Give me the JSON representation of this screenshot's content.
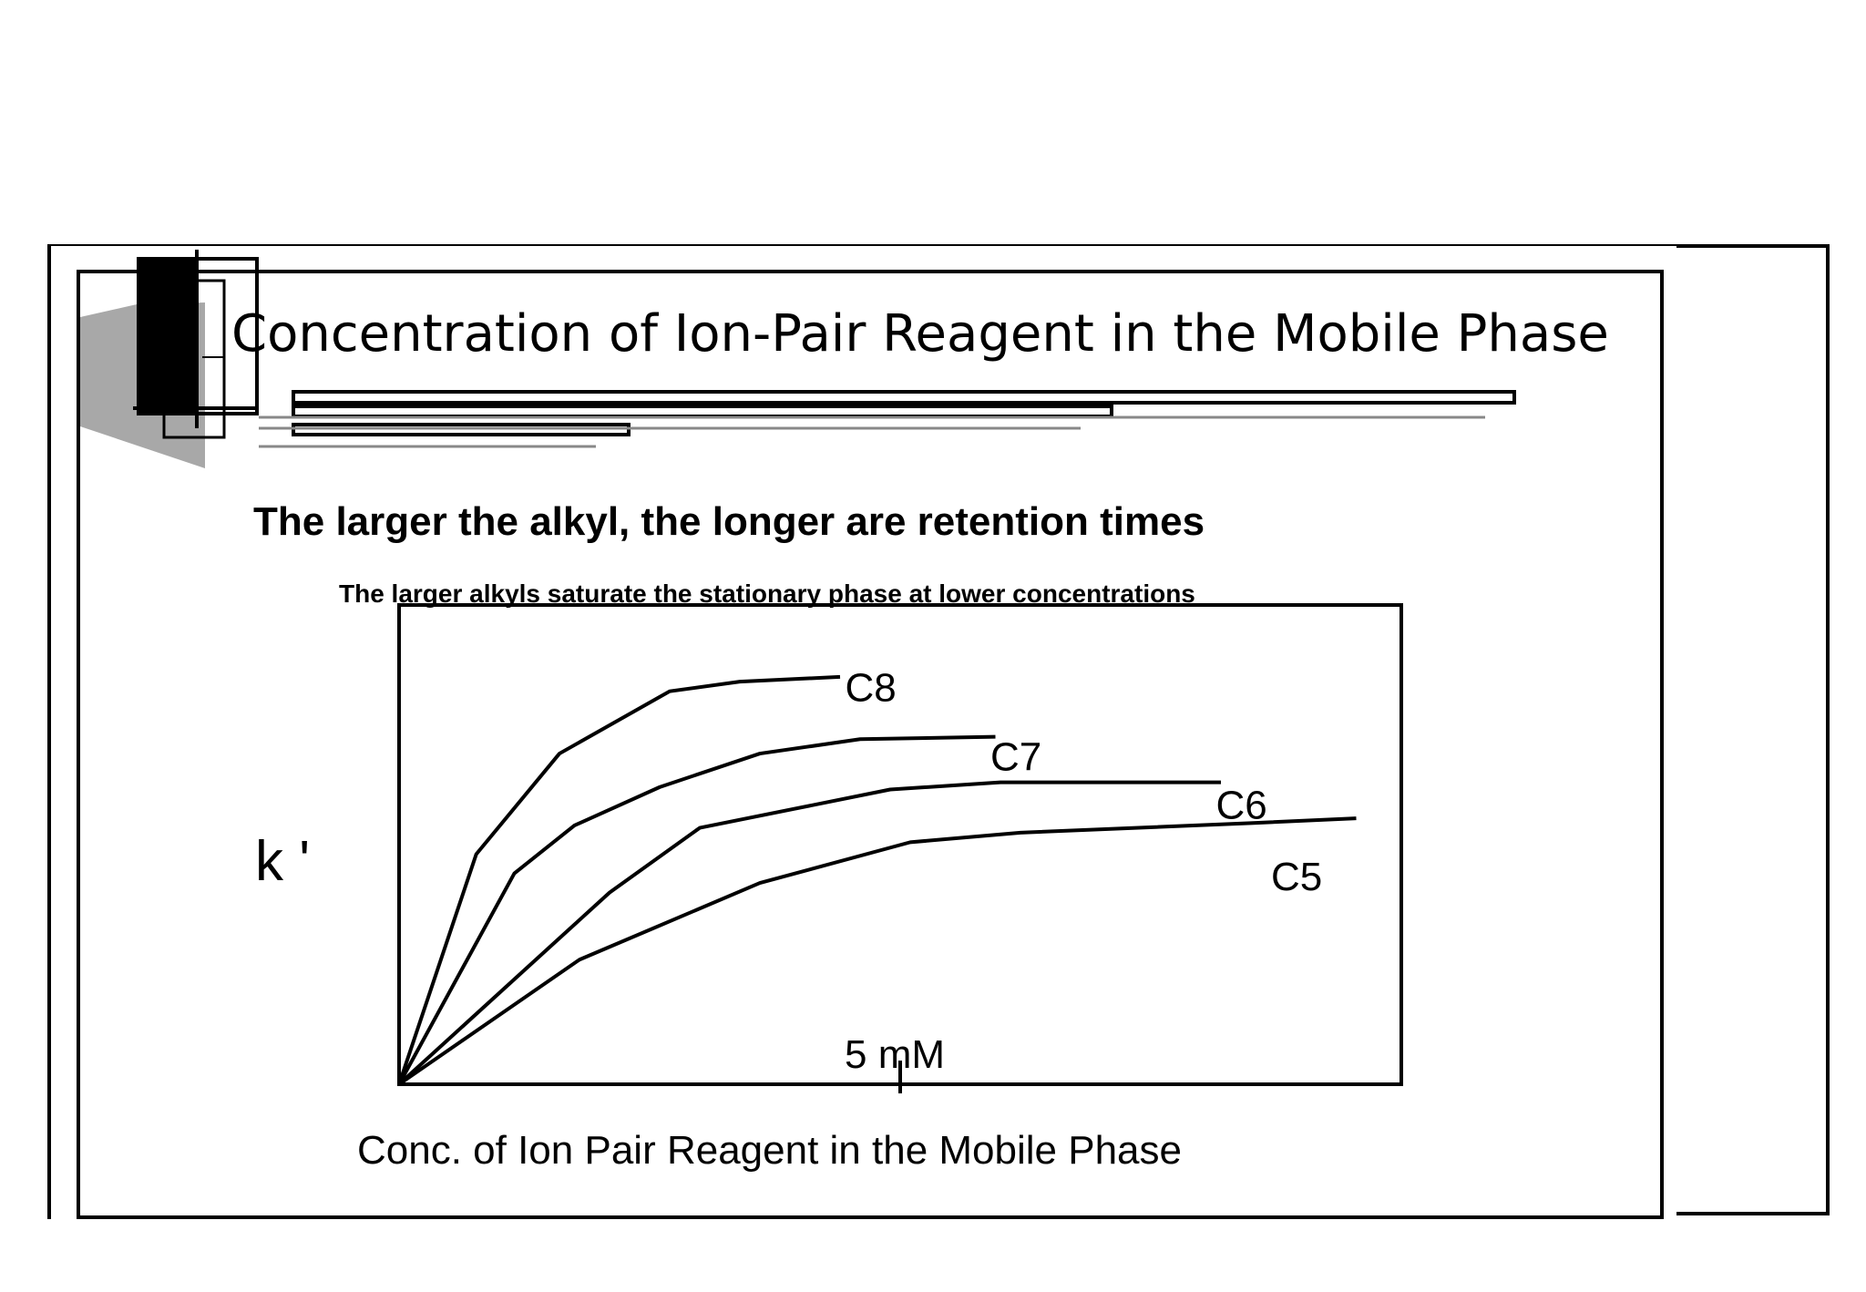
{
  "slide": {
    "title": "Concentration of Ion-Pair Reagent in the Mobile Phase",
    "subtitle": "The larger the alkyl, the longer are retention times",
    "note": "The larger alkyls saturate the stationary phase at lower concentrations"
  },
  "chart_data": {
    "type": "line",
    "xlabel": "Conc. of Ion Pair Reagent in the Mobile Phase",
    "ylabel": "k '",
    "xlim": [
      0,
      10
    ],
    "ylim": [
      0,
      10
    ],
    "x_ticks": [
      {
        "value": 5,
        "label": "5 mM"
      }
    ],
    "grid": false,
    "legend": "inline labels at curve ends",
    "series": [
      {
        "name": "C8",
        "label_pos": [
          4.45,
          8.3
        ],
        "points": [
          [
            0,
            0
          ],
          [
            0.77,
            4.8
          ],
          [
            1.6,
            6.9
          ],
          [
            2.7,
            8.2
          ],
          [
            3.4,
            8.4
          ],
          [
            4.4,
            8.5
          ]
        ]
      },
      {
        "name": "C7",
        "label_pos": [
          5.9,
          6.85
        ],
        "points": [
          [
            0,
            0
          ],
          [
            1.15,
            4.4
          ],
          [
            1.75,
            5.4
          ],
          [
            2.6,
            6.2
          ],
          [
            3.6,
            6.9
          ],
          [
            4.6,
            7.2
          ],
          [
            5.95,
            7.25
          ]
        ]
      },
      {
        "name": "C6",
        "label_pos": [
          8.15,
          5.85
        ],
        "points": [
          [
            0,
            0
          ],
          [
            2.1,
            4.0
          ],
          [
            3.0,
            5.35
          ],
          [
            4.9,
            6.15
          ],
          [
            6.0,
            6.3
          ],
          [
            8.2,
            6.3
          ]
        ]
      },
      {
        "name": "C5",
        "label_pos": [
          8.7,
          4.35
        ],
        "points": [
          [
            0,
            0
          ],
          [
            1.8,
            2.6
          ],
          [
            3.6,
            4.2
          ],
          [
            5.1,
            5.05
          ],
          [
            6.2,
            5.25
          ],
          [
            8.5,
            5.45
          ],
          [
            9.55,
            5.55
          ]
        ]
      }
    ]
  }
}
